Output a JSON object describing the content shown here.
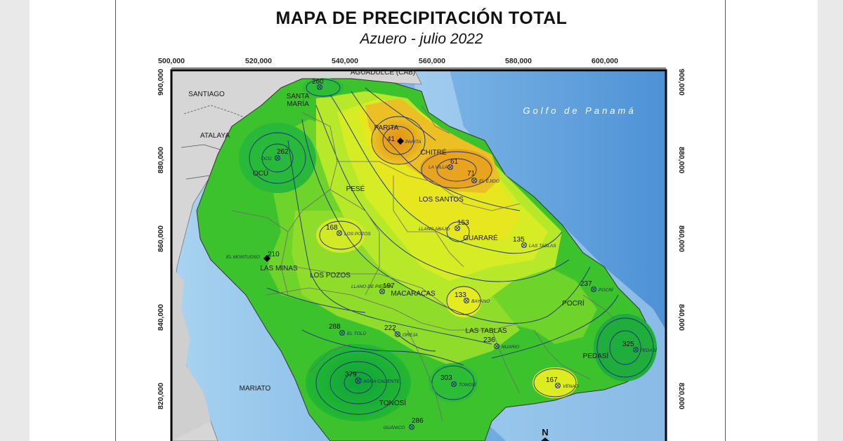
{
  "title": "MAPA DE PRECIPITACIÓN TOTAL",
  "subtitle": "Azuero - julio 2022",
  "x_ticks": [
    "500,000",
    "520,000",
    "540,000",
    "560,000",
    "580,000",
    "600,000"
  ],
  "y_ticks": [
    "900,000",
    "880,000",
    "860,000",
    "840,000",
    "820,000"
  ],
  "sea_label": "Golfo de Panamá",
  "north_label": "N",
  "places": [
    {
      "id": "aguadulce",
      "label": "AGUADULCE (CAB)"
    },
    {
      "id": "santiago",
      "label": "SANTIAGO"
    },
    {
      "id": "santa-maria-1",
      "label": "SANTA"
    },
    {
      "id": "santa-maria-2",
      "label": "MARÍA"
    },
    {
      "id": "atalaya",
      "label": "ATALAYA"
    },
    {
      "id": "parita",
      "label": "PARITA"
    },
    {
      "id": "chitre",
      "label": "CHITRÉ"
    },
    {
      "id": "ocu",
      "label": "OCÚ"
    },
    {
      "id": "pese",
      "label": "PESÉ"
    },
    {
      "id": "los-santos",
      "label": "LOS SANTOS"
    },
    {
      "id": "guarare",
      "label": "GUARARÉ"
    },
    {
      "id": "las-minas",
      "label": "LAS MINAS"
    },
    {
      "id": "los-pozos",
      "label": "LOS POZOS"
    },
    {
      "id": "macaracas",
      "label": "MACARACAS"
    },
    {
      "id": "pocri",
      "label": "POCRÍ"
    },
    {
      "id": "las-tablas",
      "label": "LAS TABLAS"
    },
    {
      "id": "pedasi",
      "label": "PEDASÍ"
    },
    {
      "id": "mariato",
      "label": "MARIATO"
    },
    {
      "id": "tonosi",
      "label": "TONOSÍ"
    }
  ],
  "stations": [
    {
      "id": "s260",
      "value": "260",
      "name": ""
    },
    {
      "id": "s262",
      "value": "262",
      "name": "OCÚ"
    },
    {
      "id": "s41",
      "value": "41",
      "name": "PARITA"
    },
    {
      "id": "s61",
      "value": "61",
      "name": "LA VILLA"
    },
    {
      "id": "s71",
      "value": "71",
      "name": "EL EJIDO"
    },
    {
      "id": "s168",
      "value": "168",
      "name": "LOS POZOS"
    },
    {
      "id": "s153",
      "value": "153",
      "name": "LLANO ABAJO"
    },
    {
      "id": "s135",
      "value": "135",
      "name": "LAS TABLAS"
    },
    {
      "id": "s210",
      "value": "210",
      "name": "EL MONTUOSO"
    },
    {
      "id": "s197",
      "value": "197",
      "name": "LLANO DE PIEDRA"
    },
    {
      "id": "s133",
      "value": "133",
      "name": "BAYANO"
    },
    {
      "id": "s237",
      "value": "237",
      "name": "POCRÍ"
    },
    {
      "id": "s288",
      "value": "288",
      "name": "EL TOLÚ"
    },
    {
      "id": "s222",
      "value": "222",
      "name": "OREJA"
    },
    {
      "id": "s236",
      "value": "236",
      "name": "NUARIO"
    },
    {
      "id": "s325",
      "value": "325",
      "name": "PEDASÍ"
    },
    {
      "id": "s379",
      "value": "379",
      "name": "AGUA CALIENTE"
    },
    {
      "id": "s303",
      "value": "303",
      "name": "TONOSÍ"
    },
    {
      "id": "s167",
      "value": "167",
      "name": "VENAO"
    },
    {
      "id": "s286",
      "value": "286",
      "name": "GUÁNICO"
    }
  ],
  "colors": {
    "sea_deep": "#4f94d4",
    "sea_light": "#9cc9ec",
    "land_other": "#d4d4d4",
    "wet": "#22b832",
    "mid": "#5fd02a",
    "dry": "#c6ec2a",
    "drier": "#e6ec1c",
    "driest": "#e49a1c",
    "contour": "#1d2f78"
  }
}
